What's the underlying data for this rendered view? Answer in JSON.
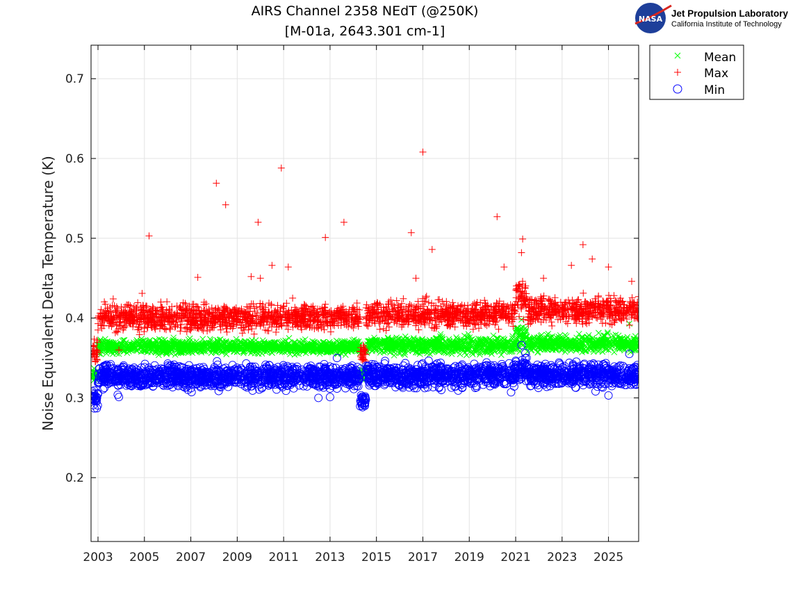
{
  "chart_data": {
    "type": "scatter",
    "title": "AIRS Channel 2358 NEdT (@250K)",
    "subtitle": "[M-01a, 2643.301 cm-1]",
    "xlabel": "",
    "ylabel": "Noise Equivalent Delta Temperature (K)",
    "xlim": [
      2002.7,
      2026.3
    ],
    "ylim": [
      0.12,
      0.742
    ],
    "xticks": [
      2003,
      2005,
      2007,
      2009,
      2011,
      2013,
      2015,
      2017,
      2019,
      2021,
      2023,
      2025
    ],
    "xtick_labels": [
      "2003",
      "2005",
      "2007",
      "2009",
      "2011",
      "2013",
      "2015",
      "2017",
      "2019",
      "2021",
      "2023",
      "2025"
    ],
    "yticks": [
      0.2,
      0.3,
      0.4,
      0.5,
      0.6,
      0.7
    ],
    "ytick_labels": [
      "0.2",
      "0.3",
      "0.4",
      "0.5",
      "0.6",
      "0.7"
    ],
    "grid": true,
    "legend_position": "outside-top-right",
    "series": [
      {
        "name": "Mean",
        "marker": "x",
        "color": "#00ff00",
        "segments": [
          {
            "from": 2002.75,
            "to": 2003.0,
            "level": 0.328,
            "spread": 0.004
          },
          {
            "from": 2003.0,
            "to": 2014.3,
            "level": 0.364,
            "spread": 0.004
          },
          {
            "from": 2014.3,
            "to": 2014.55,
            "level": 0.33,
            "spread": 0.004
          },
          {
            "from": 2014.55,
            "to": 2021.0,
            "level": 0.366,
            "spread": 0.005
          },
          {
            "from": 2021.0,
            "to": 2021.5,
            "level": 0.376,
            "spread": 0.007
          },
          {
            "from": 2021.5,
            "to": 2026.3,
            "level": 0.368,
            "spread": 0.005
          }
        ],
        "outliers": [
          [
            2003.9,
            0.355
          ],
          [
            2014.3,
            0.356
          ],
          [
            2021.25,
            0.398
          ],
          [
            2025.9,
            0.393
          ]
        ]
      },
      {
        "name": "Max",
        "marker": "+",
        "color": "#ff0000",
        "segments": [
          {
            "from": 2002.75,
            "to": 2003.0,
            "level": 0.356,
            "spread": 0.006
          },
          {
            "from": 2003.0,
            "to": 2014.3,
            "level": 0.401,
            "spread": 0.008
          },
          {
            "from": 2014.3,
            "to": 2014.55,
            "level": 0.355,
            "spread": 0.006
          },
          {
            "from": 2014.55,
            "to": 2021.0,
            "level": 0.405,
            "spread": 0.008
          },
          {
            "from": 2021.0,
            "to": 2021.5,
            "level": 0.425,
            "spread": 0.012
          },
          {
            "from": 2021.5,
            "to": 2026.3,
            "level": 0.41,
            "spread": 0.008
          }
        ],
        "outliers": [
          [
            2005.2,
            0.503
          ],
          [
            2008.1,
            0.569
          ],
          [
            2008.5,
            0.542
          ],
          [
            2010.9,
            0.588
          ],
          [
            2009.9,
            0.52
          ],
          [
            2012.8,
            0.501
          ],
          [
            2013.6,
            0.52
          ],
          [
            2016.5,
            0.507
          ],
          [
            2017.0,
            0.608
          ],
          [
            2017.4,
            0.486
          ],
          [
            2020.2,
            0.527
          ],
          [
            2021.3,
            0.499
          ],
          [
            2023.9,
            0.492
          ],
          [
            2024.3,
            0.474
          ],
          [
            2023.4,
            0.466
          ],
          [
            2010.5,
            0.466
          ],
          [
            2011.2,
            0.464
          ],
          [
            2025.0,
            0.464
          ],
          [
            2007.3,
            0.451
          ],
          [
            2009.6,
            0.452
          ],
          [
            2010.0,
            0.45
          ],
          [
            2016.7,
            0.45
          ],
          [
            2020.5,
            0.464
          ],
          [
            2021.25,
            0.482
          ],
          [
            2022.2,
            0.45
          ],
          [
            2026.0,
            0.446
          ],
          [
            2003.0,
            0.385
          ],
          [
            2003.95,
            0.39
          ],
          [
            2003.9,
            0.36
          ],
          [
            2004.9,
            0.431
          ]
        ]
      },
      {
        "name": "Min",
        "marker": "o",
        "color": "#0000ff",
        "segments": [
          {
            "from": 2002.75,
            "to": 2003.0,
            "level": 0.299,
            "spread": 0.005
          },
          {
            "from": 2003.0,
            "to": 2014.3,
            "level": 0.327,
            "spread": 0.007
          },
          {
            "from": 2014.3,
            "to": 2014.55,
            "level": 0.297,
            "spread": 0.005
          },
          {
            "from": 2014.55,
            "to": 2021.0,
            "level": 0.328,
            "spread": 0.007
          },
          {
            "from": 2021.0,
            "to": 2021.5,
            "level": 0.336,
            "spread": 0.009
          },
          {
            "from": 2021.5,
            "to": 2026.3,
            "level": 0.329,
            "spread": 0.007
          }
        ],
        "outliers": [
          [
            2003.9,
            0.301
          ],
          [
            2003.85,
            0.304
          ],
          [
            2012.5,
            0.3
          ],
          [
            2013.0,
            0.301
          ],
          [
            2013.3,
            0.35
          ],
          [
            2021.25,
            0.366
          ],
          [
            2025.9,
            0.355
          ],
          [
            2025.0,
            0.303
          ],
          [
            2002.95,
            0.287
          ],
          [
            2014.5,
            0.29
          ],
          [
            2020.8,
            0.307
          ]
        ]
      }
    ]
  },
  "logo": {
    "org": "NASA",
    "line1": "Jet Propulsion Laboratory",
    "line2": "California Institute of Technology"
  }
}
